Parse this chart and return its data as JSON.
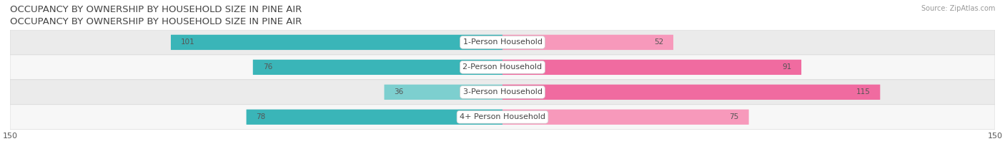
{
  "title": "OCCUPANCY BY OWNERSHIP BY HOUSEHOLD SIZE IN PINE AIR",
  "source": "Source: ZipAtlas.com",
  "categories": [
    "1-Person Household",
    "2-Person Household",
    "3-Person Household",
    "4+ Person Household"
  ],
  "owner_values": [
    101,
    76,
    36,
    78
  ],
  "renter_values": [
    52,
    91,
    115,
    75
  ],
  "owner_colors": [
    "#3ab5b8",
    "#3ab5b8",
    "#7dcfcf",
    "#3ab5b8"
  ],
  "renter_colors": [
    "#f799bb",
    "#f06ba0",
    "#f06ba0",
    "#f799bb"
  ],
  "row_bg_colors": [
    "#ebebeb",
    "#f7f7f7",
    "#ebebeb",
    "#f7f7f7"
  ],
  "separator_color": "#d8d8d8",
  "xlim": 150,
  "bar_height": 0.55,
  "title_fontsize": 9.5,
  "value_fontsize": 7.5,
  "cat_fontsize": 8,
  "tick_fontsize": 8,
  "source_fontsize": 7,
  "legend_fontsize": 8,
  "background_color": "#ffffff",
  "title_color": "#444444",
  "value_color_inside": "#ffffff",
  "value_color_outside": "#555555",
  "cat_label_color": "#444444"
}
